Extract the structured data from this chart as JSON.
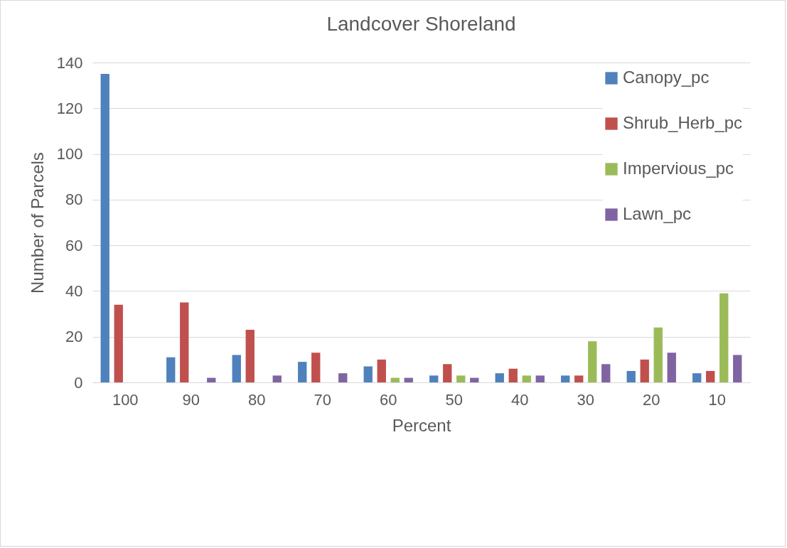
{
  "chart_data": {
    "type": "bar",
    "title": "Landcover Shoreland",
    "xlabel": "Percent",
    "ylabel": "Number of Parcels",
    "categories": [
      "100",
      "90",
      "80",
      "70",
      "60",
      "50",
      "40",
      "30",
      "20",
      "10"
    ],
    "series": [
      {
        "name": "Canopy_pc",
        "color": "#4f81bd",
        "values": [
          135,
          11,
          12,
          9,
          7,
          3,
          4,
          3,
          5,
          4
        ]
      },
      {
        "name": "Shrub_Herb_pc",
        "color": "#c0504d",
        "values": [
          34,
          35,
          23,
          13,
          10,
          8,
          6,
          3,
          10,
          5
        ]
      },
      {
        "name": "Impervious_pc",
        "color": "#9bbb59",
        "values": [
          0,
          0,
          0,
          0,
          2,
          3,
          3,
          18,
          24,
          39
        ]
      },
      {
        "name": "Lawn_pc",
        "color": "#8064a2",
        "values": [
          0,
          2,
          3,
          4,
          2,
          2,
          3,
          8,
          13,
          12
        ]
      }
    ],
    "ylim": [
      0,
      140
    ],
    "yticks": [
      0,
      20,
      40,
      60,
      80,
      100,
      120,
      140
    ],
    "grid": "y",
    "legend": "top right"
  }
}
